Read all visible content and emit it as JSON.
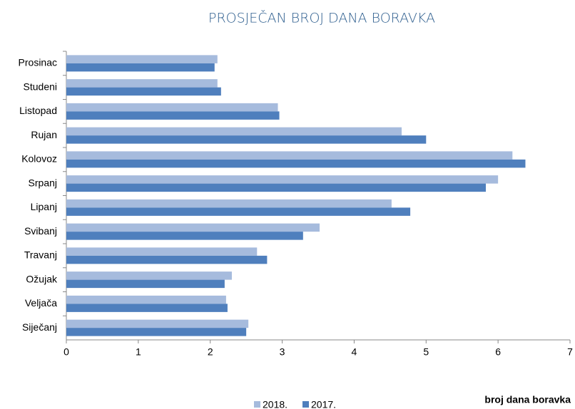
{
  "chart_data": {
    "type": "hbar",
    "title": "PROSJEČAN BROJ DANA BORAVKA",
    "x_label": "broj dana boravka",
    "categories": [
      "Prosinac",
      "Studeni",
      "Listopad",
      "Rujan",
      "Kolovoz",
      "Srpanj",
      "Lipanj",
      "Svibanj",
      "Travanj",
      "Ožujak",
      "Veljača",
      "Siječanj"
    ],
    "series": [
      {
        "name": "2018.",
        "color": "#a6bbdd",
        "values": [
          2.1,
          2.1,
          2.94,
          4.66,
          6.2,
          6.0,
          4.52,
          3.52,
          2.65,
          2.3,
          2.22,
          2.53
        ]
      },
      {
        "name": "2017.",
        "color": "#4f7fbd",
        "values": [
          2.06,
          2.15,
          2.96,
          5.0,
          6.38,
          5.83,
          4.78,
          3.29,
          2.79,
          2.2,
          2.24,
          2.5
        ]
      }
    ],
    "xlim": [
      0,
      7
    ],
    "xticks": [
      0,
      1,
      2,
      3,
      4,
      5,
      6,
      7
    ],
    "grid": false
  }
}
